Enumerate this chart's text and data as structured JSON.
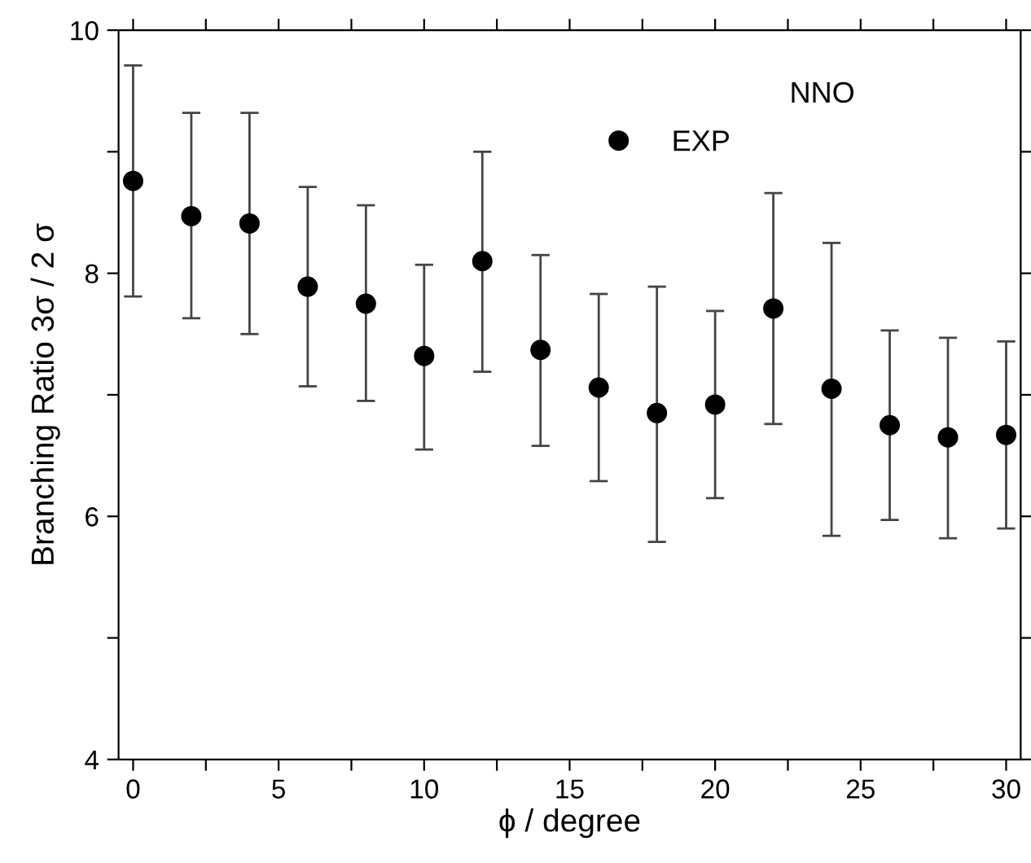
{
  "chart_data": {
    "type": "scatter",
    "xlabel": "ϕ / degree",
    "ylabel": "Branching Ratio 3σ / 2 σ",
    "annotations": [
      "NNO"
    ],
    "legend": "top",
    "marker": "circle",
    "xlim": [
      -0.5,
      30.5
    ],
    "xticks": [
      0,
      {
        "value": 2.5,
        "label": null
      },
      5,
      {
        "value": 7.5,
        "label": null
      },
      10,
      {
        "value": 12.5,
        "label": null
      },
      15,
      {
        "value": 17.5,
        "label": null
      },
      20,
      {
        "value": 22.5,
        "label": null
      },
      25,
      {
        "value": 27.5,
        "label": null
      },
      30
    ],
    "ylim": [
      4,
      10
    ],
    "yticks": [
      4,
      {
        "value": 5,
        "label": null
      },
      6,
      {
        "value": 7,
        "label": null
      },
      8,
      {
        "value": 9,
        "label": null
      },
      10
    ],
    "x": [
      0,
      2,
      4,
      6,
      8,
      10,
      12,
      14,
      16,
      18,
      20,
      22,
      24,
      26,
      28,
      30
    ],
    "series": [
      {
        "name": "EXP",
        "color": "#000000",
        "values": [
          8.76,
          8.47,
          8.41,
          7.89,
          7.75,
          7.32,
          8.1,
          7.37,
          7.06,
          6.85,
          6.92,
          7.71,
          7.05,
          6.75,
          6.65,
          6.67
        ],
        "errors": [
          [
            7.81,
            9.71
          ],
          [
            7.63,
            9.32
          ],
          [
            7.5,
            9.32
          ],
          [
            7.07,
            8.71
          ],
          [
            6.95,
            8.56
          ],
          [
            6.55,
            8.07
          ],
          [
            7.19,
            9.0
          ],
          [
            6.58,
            8.15
          ],
          [
            6.29,
            7.83
          ],
          [
            5.79,
            7.89
          ],
          [
            6.15,
            7.69
          ],
          [
            6.76,
            8.66
          ],
          [
            5.84,
            8.25
          ],
          [
            5.97,
            7.53
          ],
          [
            5.82,
            7.47
          ],
          [
            5.9,
            7.44
          ]
        ]
      }
    ]
  }
}
